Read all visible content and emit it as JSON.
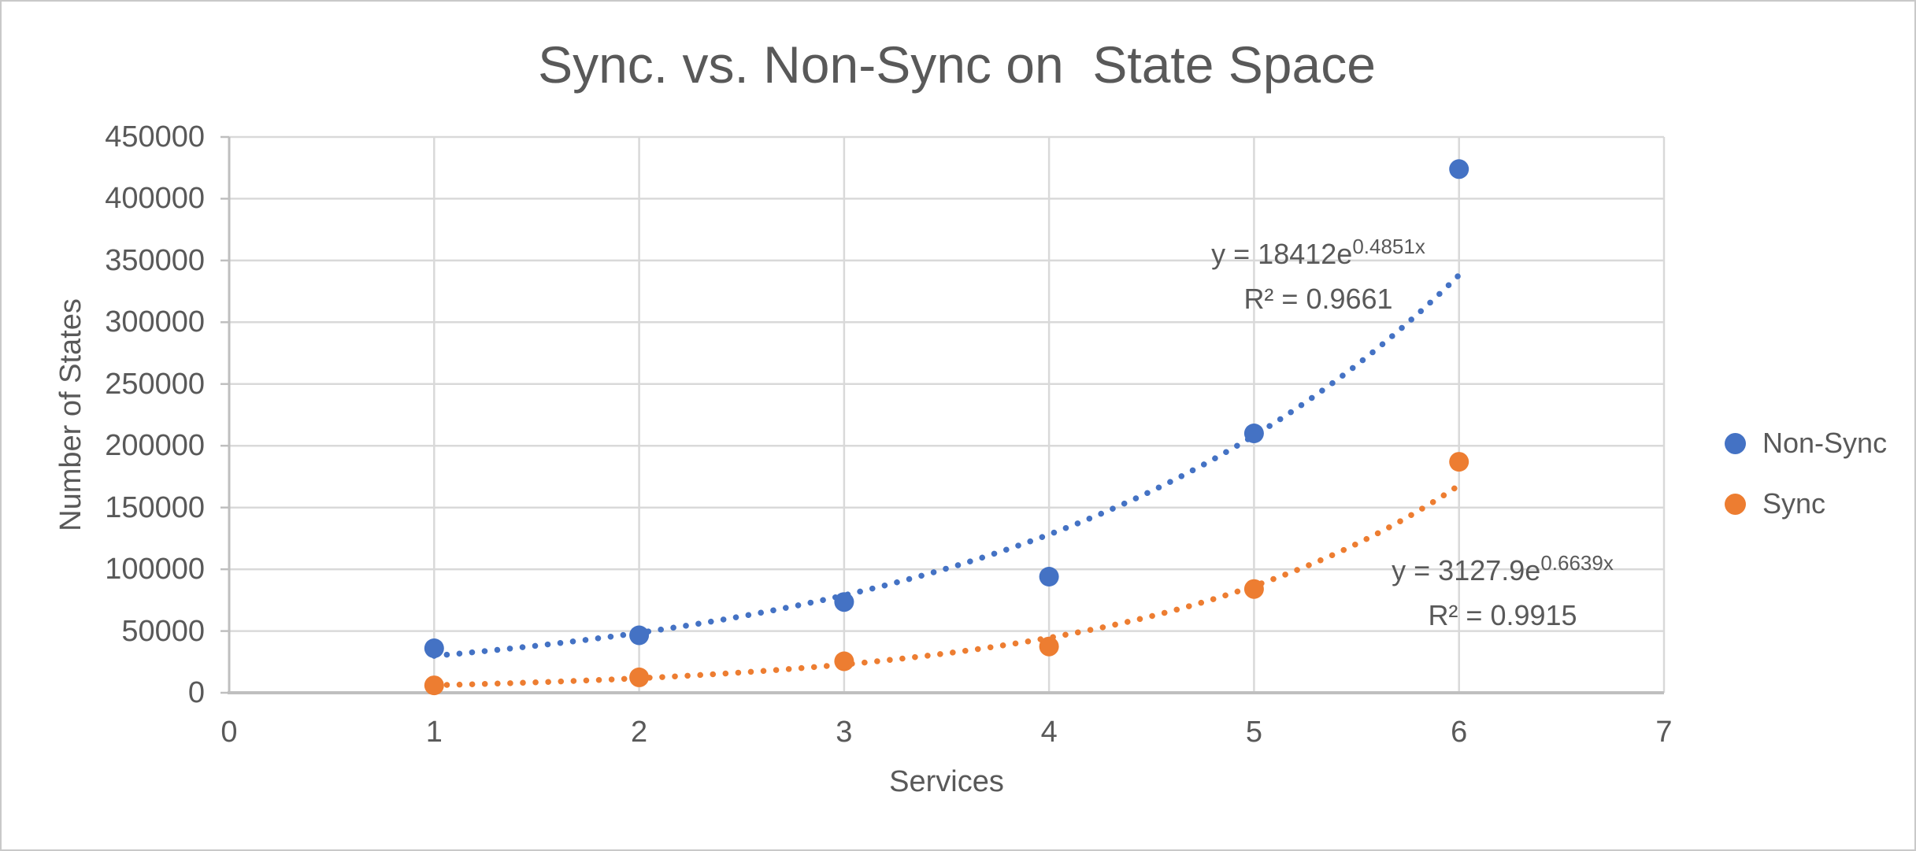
{
  "chart_data": {
    "type": "scatter",
    "title": "Sync. vs. Non-Sync on  State Space",
    "xlabel": "Services",
    "ylabel": "Number of States",
    "xlim": [
      0,
      7
    ],
    "ylim": [
      0,
      450000
    ],
    "x_ticks": [
      "0",
      "1",
      "2",
      "3",
      "4",
      "5",
      "6",
      "7"
    ],
    "y_ticks": [
      "0",
      "50000",
      "100000",
      "150000",
      "200000",
      "250000",
      "300000",
      "350000",
      "400000",
      "450000"
    ],
    "y_tick_step": 50000,
    "grid": true,
    "legend_position": "right",
    "series": [
      {
        "name": "Non-Sync",
        "color": "#4472C4",
        "x": [
          1,
          2,
          3,
          4,
          5,
          6
        ],
        "values": [
          36000,
          46500,
          73500,
          94000,
          210000,
          424000
        ],
        "trendline": {
          "type": "exponential",
          "a": 18412,
          "b": 0.4851,
          "range": [
            1,
            6
          ],
          "equation_base": "y = 18412e",
          "equation_exponent": "0.4851x",
          "r2_label": "R² = 0.9661"
        }
      },
      {
        "name": "Sync",
        "color": "#ED7D31",
        "x": [
          1,
          2,
          3,
          4,
          5,
          6
        ],
        "values": [
          6000,
          12500,
          25500,
          37500,
          84000,
          187000
        ],
        "trendline": {
          "type": "exponential",
          "a": 3127.9,
          "b": 0.6639,
          "range": [
            1,
            6
          ],
          "equation_base": "y = 3127.9e",
          "equation_exponent": "0.6639x",
          "r2_label": "R² = 0.9915"
        }
      }
    ],
    "colors": {
      "text": "#595959",
      "gridline": "#D9D9D9",
      "axis": "#BFBFBF",
      "non_sync": "#4472C4",
      "sync": "#ED7D31"
    }
  }
}
